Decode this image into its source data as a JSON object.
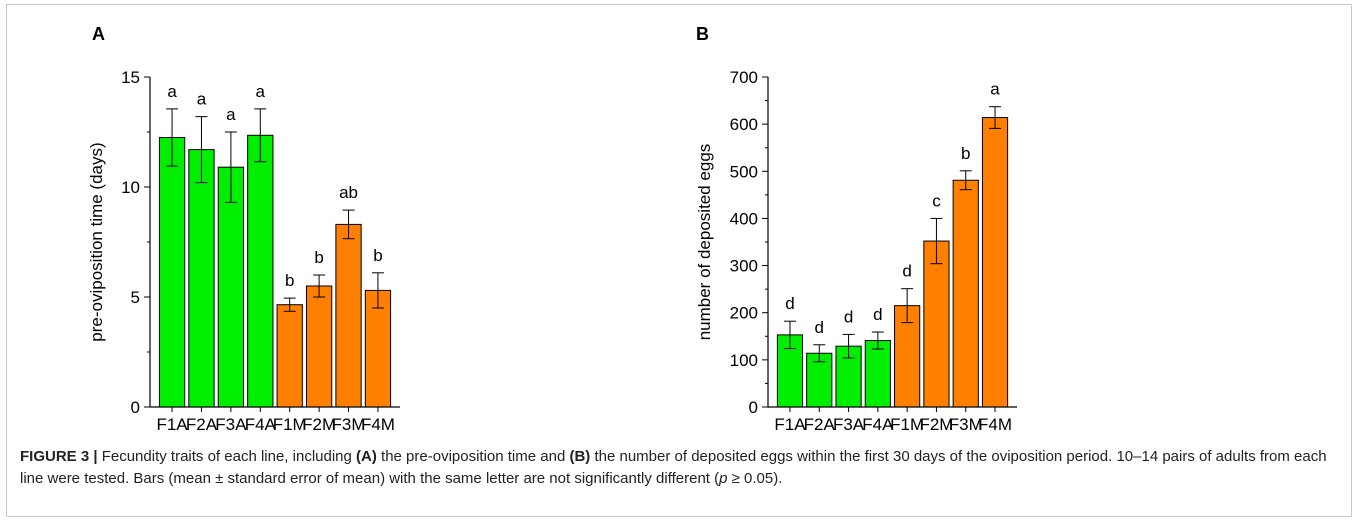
{
  "colors": {
    "A_group": "#00ee00",
    "M_group": "#ff7f00",
    "axis": "#000000",
    "frame": "#c8c8c8"
  },
  "chart_data": [
    {
      "panel_label": "A",
      "type": "bar",
      "categories": [
        "F1A",
        "F2A",
        "F3A",
        "F4A",
        "F1M",
        "F2M",
        "F3M",
        "F4M"
      ],
      "values": [
        12.25,
        11.7,
        10.9,
        12.35,
        4.65,
        5.5,
        8.3,
        5.3
      ],
      "errors": [
        1.3,
        1.5,
        1.6,
        1.2,
        0.3,
        0.5,
        0.65,
        0.8
      ],
      "letters": [
        "a",
        "a",
        "a",
        "a",
        "b",
        "b",
        "ab",
        "b"
      ],
      "bar_colors": [
        "#00ee00",
        "#00ee00",
        "#00ee00",
        "#00ee00",
        "#ff7f00",
        "#ff7f00",
        "#ff7f00",
        "#ff7f00"
      ],
      "ylabel": "pre-oviposition time (days)",
      "ylim": [
        0,
        15
      ],
      "yticks": [
        0,
        5,
        10,
        15
      ]
    },
    {
      "panel_label": "B",
      "type": "bar",
      "categories": [
        "F1A",
        "F2A",
        "F3A",
        "F4A",
        "F1M",
        "F2M",
        "F3M",
        "F4M"
      ],
      "values": [
        153,
        114,
        129,
        141,
        215,
        352,
        481,
        614
      ],
      "errors": [
        29,
        18,
        25,
        18,
        36,
        48,
        20,
        23
      ],
      "letters": [
        "d",
        "d",
        "d",
        "d",
        "d",
        "c",
        "b",
        "a"
      ],
      "bar_colors": [
        "#00ee00",
        "#00ee00",
        "#00ee00",
        "#00ee00",
        "#ff7f00",
        "#ff7f00",
        "#ff7f00",
        "#ff7f00"
      ],
      "ylabel": "number of deposited eggs",
      "ylim": [
        0,
        700
      ],
      "yticks": [
        0,
        100,
        200,
        300,
        400,
        500,
        600,
        700
      ]
    }
  ],
  "caption": {
    "figure_label": "FIGURE 3 |",
    "text_1": " Fecundity traits of each line, including ",
    "bold_a": "(A)",
    "text_2": " the pre-oviposition time and ",
    "bold_b": "(B)",
    "text_3": " the number of deposited eggs within the first 30 days of the oviposition period. 10–14 pairs of adults from each line were tested. Bars (mean ± standard error of mean) with the same letter are not significantly different (",
    "italic_p": "p",
    "text_4": " ≥ 0.05)."
  }
}
